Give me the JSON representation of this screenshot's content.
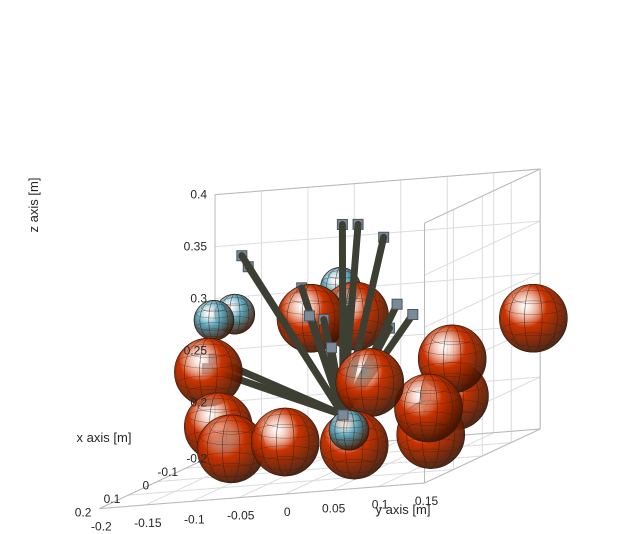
{
  "chart_data": {
    "type": "scatter3d",
    "xlabel": "x axis [m]",
    "ylabel": "y axis [m]",
    "zlabel": "z axis [m]",
    "xlim": [
      -0.2,
      0.2
    ],
    "ylim": [
      -0.2,
      0.15
    ],
    "zlim": [
      0.15,
      0.4
    ],
    "x_ticks": [
      "-0.2",
      "-0.1",
      "0",
      "0.1",
      "0.2"
    ],
    "y_ticks": [
      "-0.2",
      "-0.15",
      "-0.1",
      "-0.05",
      "0",
      "0.05",
      "0.1",
      "0.15"
    ],
    "z_ticks": [
      "0.2",
      "0.25",
      "0.3",
      "0.35",
      "0.4"
    ],
    "grid": true,
    "colors": {
      "obstacle_sphere": "#cc3300",
      "target_sphere": "#5aa8be",
      "link": "#3d3f33",
      "joint": "#7a8a99",
      "grid": "#dcdcdc",
      "axis": "#262626"
    },
    "base_point": [
      0.0,
      0.0,
      0.2
    ],
    "series": [
      {
        "marker": "sphere",
        "color": "#cc3300",
        "points": [
          [
            -0.05,
            -0.05,
            0.29
          ],
          [
            -0.04,
            0.0,
            0.29
          ],
          [
            0.08,
            -0.12,
            0.26
          ],
          [
            0.1,
            0.06,
            0.24
          ],
          [
            0.04,
            0.13,
            0.25
          ],
          [
            -0.08,
            0.18,
            0.27
          ],
          [
            0.0,
            0.12,
            0.21
          ],
          [
            0.09,
            0.12,
            0.21
          ],
          [
            0.11,
            -0.1,
            0.21
          ],
          [
            0.13,
            -0.08,
            0.19
          ],
          [
            0.09,
            0.04,
            0.18
          ],
          [
            0.05,
            0.11,
            0.18
          ],
          [
            0.2,
            0.0,
            0.2
          ]
        ]
      },
      {
        "marker": "sphere",
        "color": "#5aa8be",
        "points": [
          [
            -0.1,
            -0.17,
            0.29
          ],
          [
            -0.14,
            -0.16,
            0.29
          ],
          [
            -0.12,
            -0.04,
            0.31
          ],
          [
            0.14,
            0.05,
            0.2
          ]
        ]
      },
      {
        "marker": "square",
        "color": "#7a8a99",
        "name": "",
        "points": [
          [
            -0.1,
            -0.14,
            0.35
          ],
          [
            -0.09,
            -0.13,
            0.34
          ],
          [
            -0.03,
            -0.01,
            0.38
          ],
          [
            -0.02,
            0.01,
            0.38
          ],
          [
            0.02,
            0.05,
            0.37
          ],
          [
            0.07,
            0.08,
            0.31
          ],
          [
            0.08,
            0.1,
            0.3
          ],
          [
            0.0,
            0.05,
            0.28
          ],
          [
            0.02,
            -0.03,
            0.3
          ],
          [
            -0.02,
            0.0,
            0.3
          ],
          [
            0.05,
            -0.13,
            0.26
          ],
          [
            0.06,
            -0.12,
            0.27
          ],
          [
            0.07,
            0.06,
            0.26
          ],
          [
            -0.05,
            -0.06,
            0.32
          ],
          [
            -0.03,
            -0.03,
            0.29
          ],
          [
            0.04,
            0.0,
            0.27
          ]
        ]
      }
    ]
  }
}
